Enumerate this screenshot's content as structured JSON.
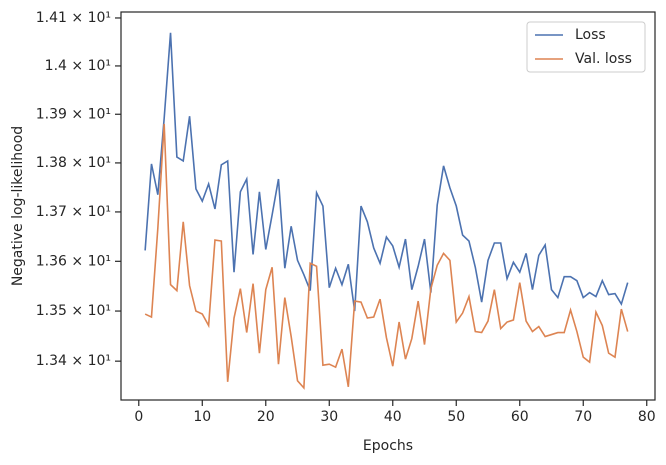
{
  "chart_data": {
    "type": "line",
    "x_label": "Epochs",
    "y_label": "Negative log-likelihood",
    "x": [
      1,
      2,
      3,
      4,
      5,
      6,
      7,
      8,
      9,
      10,
      11,
      12,
      13,
      14,
      15,
      16,
      17,
      18,
      19,
      20,
      21,
      22,
      23,
      24,
      25,
      26,
      27,
      28,
      29,
      30,
      31,
      32,
      33,
      34,
      35,
      36,
      37,
      38,
      39,
      40,
      41,
      42,
      43,
      44,
      45,
      46,
      47,
      48,
      49,
      50,
      51,
      52,
      53,
      54,
      55,
      56,
      57,
      58,
      59,
      60,
      61,
      62,
      63,
      64,
      65,
      66,
      67,
      68,
      69,
      70,
      71,
      72,
      73,
      74,
      75,
      76,
      77
    ],
    "series": [
      {
        "name": "Loss",
        "color": "#4c72b0",
        "values": [
          13.622,
          13.798,
          13.735,
          13.892,
          14.069,
          13.812,
          13.804,
          13.896,
          13.747,
          13.722,
          13.757,
          13.706,
          13.796,
          13.804,
          13.578,
          13.741,
          13.767,
          13.614,
          13.741,
          13.624,
          13.694,
          13.767,
          13.586,
          13.671,
          13.602,
          13.573,
          13.541,
          13.739,
          13.712,
          13.547,
          13.586,
          13.553,
          13.594,
          13.5,
          13.712,
          13.68,
          13.627,
          13.596,
          13.649,
          13.631,
          13.588,
          13.645,
          13.543,
          13.59,
          13.645,
          13.537,
          13.714,
          13.794,
          13.749,
          13.712,
          13.653,
          13.641,
          13.588,
          13.518,
          13.602,
          13.637,
          13.637,
          13.565,
          13.598,
          13.578,
          13.616,
          13.543,
          13.612,
          13.633,
          13.543,
          13.527,
          13.569,
          13.569,
          13.561,
          13.527,
          13.537,
          13.529,
          13.561,
          13.533,
          13.535,
          13.514,
          13.557
        ]
      },
      {
        "name": "Val. loss",
        "color": "#dd8452",
        "values": [
          13.494,
          13.488,
          13.667,
          13.88,
          13.553,
          13.541,
          13.68,
          13.551,
          13.5,
          13.494,
          13.471,
          13.643,
          13.641,
          13.359,
          13.486,
          13.545,
          13.457,
          13.555,
          13.416,
          13.543,
          13.588,
          13.394,
          13.527,
          13.449,
          13.361,
          13.347,
          13.596,
          13.59,
          13.392,
          13.394,
          13.388,
          13.424,
          13.349,
          13.52,
          13.518,
          13.486,
          13.488,
          13.524,
          13.447,
          13.39,
          13.478,
          13.404,
          13.445,
          13.52,
          13.433,
          13.545,
          13.592,
          13.616,
          13.602,
          13.478,
          13.496,
          13.529,
          13.459,
          13.457,
          13.48,
          13.543,
          13.465,
          13.478,
          13.482,
          13.557,
          13.48,
          13.459,
          13.469,
          13.449,
          13.453,
          13.457,
          13.457,
          13.502,
          13.459,
          13.408,
          13.398,
          13.498,
          13.471,
          13.416,
          13.408,
          13.504,
          13.459
        ]
      }
    ],
    "xlim": [
      -2.8,
      81.3
    ],
    "xticks": [
      0,
      10,
      20,
      30,
      40,
      50,
      60,
      70,
      80
    ],
    "ylim": [
      13.323,
      14.1125
    ],
    "y_scale": "log",
    "yticks": [
      {
        "value": 13.4,
        "label": "1.34 × 10¹"
      },
      {
        "value": 13.5,
        "label": "1.35 × 10¹"
      },
      {
        "value": 13.6,
        "label": "1.36 × 10¹"
      },
      {
        "value": 13.7,
        "label": "1.37 × 10¹"
      },
      {
        "value": 13.8,
        "label": "1.38 × 10¹"
      },
      {
        "value": 13.9,
        "label": "1.39 × 10¹"
      },
      {
        "value": 14.0,
        "label": "1.4 × 10¹"
      },
      {
        "value": 14.1,
        "label": "1.41 × 10¹"
      }
    ],
    "legend": "upper right",
    "grid": false
  }
}
